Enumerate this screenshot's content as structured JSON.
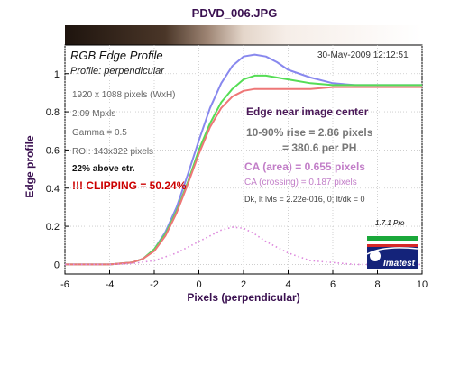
{
  "chart_data": {
    "type": "line",
    "title": "PDVD_006.JPG",
    "subtitle": "RGB Edge Profile",
    "profile_label": "Profile: perpendicular",
    "date": "30-May-2009 12:12:51",
    "xlabel": "Pixels (perpendicular)",
    "ylabel": "Edge profile",
    "xlim": [
      -6,
      10
    ],
    "ylim": [
      -0.05,
      1.15
    ],
    "xticks": [
      "-6",
      "-4",
      "-2",
      "0",
      "2",
      "4",
      "6",
      "8",
      "10"
    ],
    "yticks": [
      "0",
      "0.2",
      "0.4",
      "0.6",
      "0.8",
      "1"
    ],
    "grid": true,
    "series": [
      {
        "color": "#8888ee",
        "x": [
          -6,
          -4,
          -3,
          -2.5,
          -2,
          -1.5,
          -1,
          -0.5,
          0,
          0.5,
          1,
          1.5,
          2,
          2.5,
          3,
          3.5,
          4,
          5,
          6,
          7,
          8,
          9,
          10
        ],
        "y": [
          0.0,
          0.0,
          0.01,
          0.03,
          0.08,
          0.17,
          0.3,
          0.47,
          0.65,
          0.82,
          0.95,
          1.04,
          1.09,
          1.1,
          1.09,
          1.06,
          1.02,
          0.98,
          0.95,
          0.94,
          0.94,
          0.94,
          0.94
        ]
      },
      {
        "color": "#55dd55",
        "x": [
          -6,
          -4,
          -3,
          -2.5,
          -2,
          -1.5,
          -1,
          -0.5,
          0,
          0.5,
          1,
          1.5,
          2,
          2.5,
          3,
          3.5,
          4,
          5,
          6,
          7,
          8,
          9,
          10
        ],
        "y": [
          0.0,
          0.0,
          0.01,
          0.03,
          0.08,
          0.16,
          0.28,
          0.43,
          0.6,
          0.74,
          0.85,
          0.92,
          0.97,
          0.99,
          0.99,
          0.98,
          0.97,
          0.95,
          0.94,
          0.94,
          0.94,
          0.94,
          0.94
        ]
      },
      {
        "color": "#ee7777",
        "x": [
          -6,
          -4,
          -3,
          -2.5,
          -2,
          -1.5,
          -1,
          -0.5,
          0,
          0.5,
          1,
          1.5,
          2,
          2.5,
          3,
          3.5,
          4,
          5,
          6,
          7,
          8,
          9,
          10
        ],
        "y": [
          0.0,
          0.0,
          0.01,
          0.03,
          0.07,
          0.15,
          0.27,
          0.42,
          0.58,
          0.72,
          0.82,
          0.88,
          0.91,
          0.92,
          0.92,
          0.92,
          0.92,
          0.92,
          0.93,
          0.93,
          0.93,
          0.93,
          0.93
        ]
      },
      {
        "color": "#dd88dd",
        "dotted": true,
        "x": [
          -6,
          -4,
          -3,
          -2,
          -1,
          0,
          0.5,
          1,
          1.5,
          2,
          2.5,
          3,
          4,
          5,
          6,
          7,
          8,
          10
        ],
        "y": [
          0.0,
          0.0,
          0.005,
          0.02,
          0.06,
          0.12,
          0.15,
          0.18,
          0.195,
          0.19,
          0.16,
          0.12,
          0.06,
          0.02,
          0.01,
          0.0,
          0.0,
          0.0
        ]
      }
    ]
  },
  "info_lines": [
    "1920 x 1088 pixels (WxH)",
    "2.09 Mpxls",
    "Gamma = 0.5",
    "ROI: 143x322 pixels",
    "22% above ctr."
  ],
  "clipping": "!!! CLIPPING =  50.24%",
  "results": {
    "edge_title": "Edge near image center",
    "rise": "10-90% rise = 2.86 pixels",
    "per_ph": "= 380.6 per PH",
    "ca_area": "CA (area) = 0.655 pixels",
    "ca_crossing": "CA (crossing) = 0.187 pixels",
    "dk": "Dk, lt lvls = 2.22e-016, 0;  lt/dk = 0"
  },
  "version": "1.7.1  Pro",
  "logo_text": "Imatest"
}
